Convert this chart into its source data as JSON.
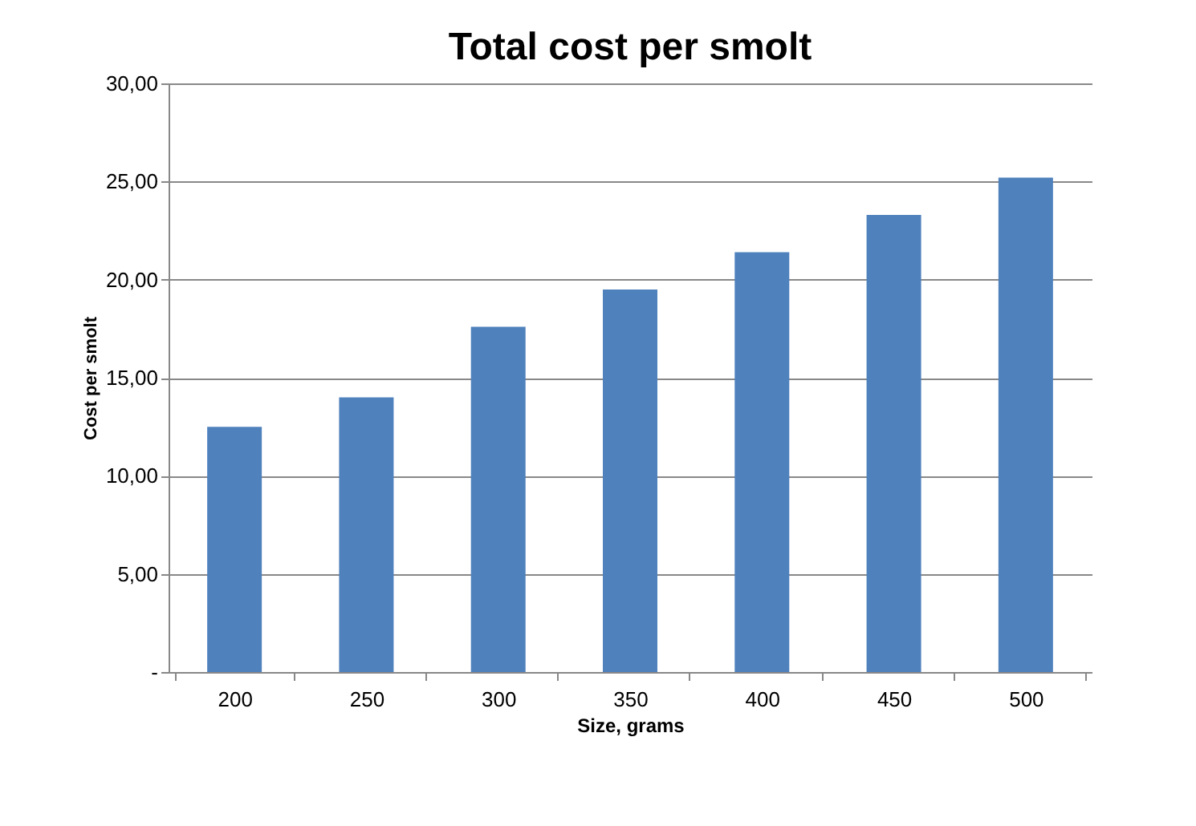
{
  "chart_data": {
    "type": "bar",
    "title": "Total cost per smolt",
    "xlabel": "Size, grams",
    "ylabel": "Cost per smolt",
    "categories": [
      "200",
      "250",
      "300",
      "350",
      "400",
      "450",
      "500"
    ],
    "values": [
      12.5,
      14.0,
      17.6,
      19.5,
      21.4,
      23.3,
      25.2
    ],
    "color": "#4f81bd",
    "ylim": [
      0,
      30
    ],
    "yticks": [
      {
        "value": 0,
        "label": "-"
      },
      {
        "value": 5,
        "label": "5,00"
      },
      {
        "value": 10,
        "label": "10,00"
      },
      {
        "value": 15,
        "label": "15,00"
      },
      {
        "value": 20,
        "label": "20,00"
      },
      {
        "value": 25,
        "label": "25,00"
      },
      {
        "value": 30,
        "label": "30,00"
      }
    ],
    "grid": "y"
  }
}
